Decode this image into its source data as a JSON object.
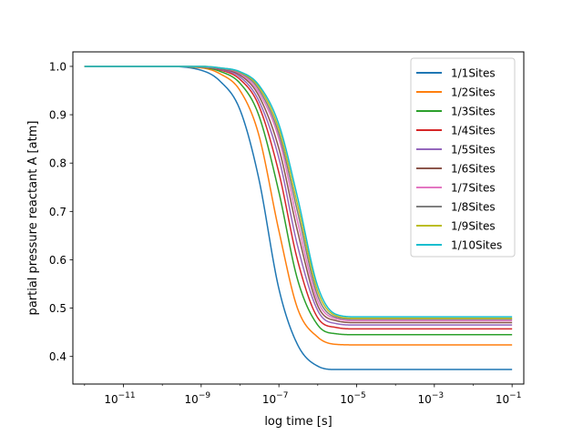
{
  "chart_data": {
    "type": "line",
    "title": "",
    "xlabel": "log time [s]",
    "ylabel": "partial pressure reactant A [atm]",
    "xscale": "log",
    "xlim": [
      5e-13,
      0.2
    ],
    "ylim": [
      0.343,
      1.03
    ],
    "grid": false,
    "legend_position": "top-right",
    "x_ticks": [
      {
        "value": 1e-11,
        "base": "10",
        "exp": "−11"
      },
      {
        "value": 1e-09,
        "base": "10",
        "exp": "−9"
      },
      {
        "value": 1e-07,
        "base": "10",
        "exp": "−7"
      },
      {
        "value": 1e-05,
        "base": "10",
        "exp": "−5"
      },
      {
        "value": 0.001,
        "base": "10",
        "exp": "−3"
      },
      {
        "value": 0.1,
        "base": "10",
        "exp": "−1"
      }
    ],
    "y_ticks": [
      {
        "value": 0.4,
        "label": "0.4"
      },
      {
        "value": 0.5,
        "label": "0.5"
      },
      {
        "value": 0.6,
        "label": "0.6"
      },
      {
        "value": 0.7,
        "label": "0.7"
      },
      {
        "value": 0.8,
        "label": "0.8"
      },
      {
        "value": 0.9,
        "label": "0.9"
      },
      {
        "value": 1.0,
        "label": "1.0"
      }
    ],
    "series": [
      {
        "name": "1/1Sites",
        "color": "#1f77b4",
        "x": [
          1e-12,
          1e-10,
          1e-09,
          3e-09,
          1e-08,
          3e-08,
          1e-07,
          3e-07,
          1e-06,
          3e-06,
          1e-05,
          0.0001,
          0.001,
          0.1
        ],
        "y": [
          1.0,
          1.0,
          0.992,
          0.97,
          0.91,
          0.77,
          0.54,
          0.425,
          0.38,
          0.373,
          0.373,
          0.373,
          0.373,
          0.373
        ]
      },
      {
        "name": "1/2Sites",
        "color": "#ff7f0e",
        "x": [
          1e-12,
          1e-10,
          1e-09,
          3e-09,
          1e-08,
          3e-08,
          1e-07,
          3e-07,
          1e-06,
          3e-06,
          1e-05,
          0.0001,
          0.001,
          0.1
        ],
        "y": [
          1.0,
          1.0,
          0.997,
          0.985,
          0.95,
          0.86,
          0.66,
          0.5,
          0.44,
          0.425,
          0.424,
          0.424,
          0.424,
          0.424
        ]
      },
      {
        "name": "1/3Sites",
        "color": "#2ca02c",
        "x": [
          1e-12,
          1e-10,
          1e-09,
          3e-09,
          1e-08,
          3e-08,
          1e-07,
          3e-07,
          1e-06,
          3e-06,
          1e-05,
          0.0001,
          0.001,
          0.1
        ],
        "y": [
          1.0,
          1.0,
          0.998,
          0.99,
          0.965,
          0.9,
          0.74,
          0.56,
          0.465,
          0.447,
          0.445,
          0.445,
          0.445,
          0.445
        ]
      },
      {
        "name": "1/4Sites",
        "color": "#d62728",
        "x": [
          1e-12,
          1e-10,
          1e-09,
          3e-09,
          1e-08,
          3e-08,
          1e-07,
          3e-07,
          1e-06,
          3e-06,
          1e-05,
          0.0001,
          0.001,
          0.1
        ],
        "y": [
          1.0,
          1.0,
          0.999,
          0.993,
          0.973,
          0.92,
          0.78,
          0.6,
          0.48,
          0.46,
          0.457,
          0.457,
          0.457,
          0.457
        ]
      },
      {
        "name": "1/5Sites",
        "color": "#9467bd",
        "x": [
          1e-12,
          1e-10,
          1e-09,
          3e-09,
          1e-08,
          3e-08,
          1e-07,
          3e-07,
          1e-06,
          3e-06,
          1e-05,
          0.0001,
          0.001,
          0.1
        ],
        "y": [
          1.0,
          1.0,
          0.999,
          0.994,
          0.978,
          0.93,
          0.81,
          0.63,
          0.495,
          0.468,
          0.465,
          0.465,
          0.465,
          0.465
        ]
      },
      {
        "name": "1/6Sites",
        "color": "#8c564b",
        "x": [
          1e-12,
          1e-10,
          1e-09,
          3e-09,
          1e-08,
          3e-08,
          1e-07,
          3e-07,
          1e-06,
          3e-06,
          1e-05,
          0.0001,
          0.001,
          0.1
        ],
        "y": [
          1.0,
          1.0,
          0.999,
          0.995,
          0.982,
          0.94,
          0.83,
          0.66,
          0.505,
          0.474,
          0.47,
          0.47,
          0.47,
          0.47
        ]
      },
      {
        "name": "1/7Sites",
        "color": "#e377c2",
        "x": [
          1e-12,
          1e-10,
          1e-09,
          3e-09,
          1e-08,
          3e-08,
          1e-07,
          3e-07,
          1e-06,
          3e-06,
          1e-05,
          0.0001,
          0.001,
          0.1
        ],
        "y": [
          1.0,
          1.0,
          0.999,
          0.996,
          0.985,
          0.947,
          0.85,
          0.68,
          0.515,
          0.478,
          0.474,
          0.474,
          0.474,
          0.474
        ]
      },
      {
        "name": "1/8Sites",
        "color": "#7f7f7f",
        "x": [
          1e-12,
          1e-10,
          1e-09,
          3e-09,
          1e-08,
          3e-08,
          1e-07,
          3e-07,
          1e-06,
          3e-06,
          1e-05,
          0.0001,
          0.001,
          0.1
        ],
        "y": [
          1.0,
          1.0,
          1.0,
          0.996,
          0.987,
          0.953,
          0.86,
          0.7,
          0.525,
          0.481,
          0.477,
          0.477,
          0.477,
          0.477
        ]
      },
      {
        "name": "1/9Sites",
        "color": "#bcbd22",
        "x": [
          1e-12,
          1e-10,
          1e-09,
          3e-09,
          1e-08,
          3e-08,
          1e-07,
          3e-07,
          1e-06,
          3e-06,
          1e-05,
          0.0001,
          0.001,
          0.1
        ],
        "y": [
          1.0,
          1.0,
          1.0,
          0.997,
          0.988,
          0.958,
          0.87,
          0.715,
          0.535,
          0.484,
          0.479,
          0.479,
          0.479,
          0.479
        ]
      },
      {
        "name": "1/10Sites",
        "color": "#17becf",
        "x": [
          1e-12,
          1e-10,
          1e-09,
          3e-09,
          1e-08,
          3e-08,
          1e-07,
          3e-07,
          1e-06,
          3e-06,
          1e-05,
          0.0001,
          0.001,
          0.1
        ],
        "y": [
          1.0,
          1.0,
          1.0,
          0.997,
          0.989,
          0.962,
          0.88,
          0.73,
          0.545,
          0.487,
          0.482,
          0.482,
          0.482,
          0.482
        ]
      }
    ]
  }
}
